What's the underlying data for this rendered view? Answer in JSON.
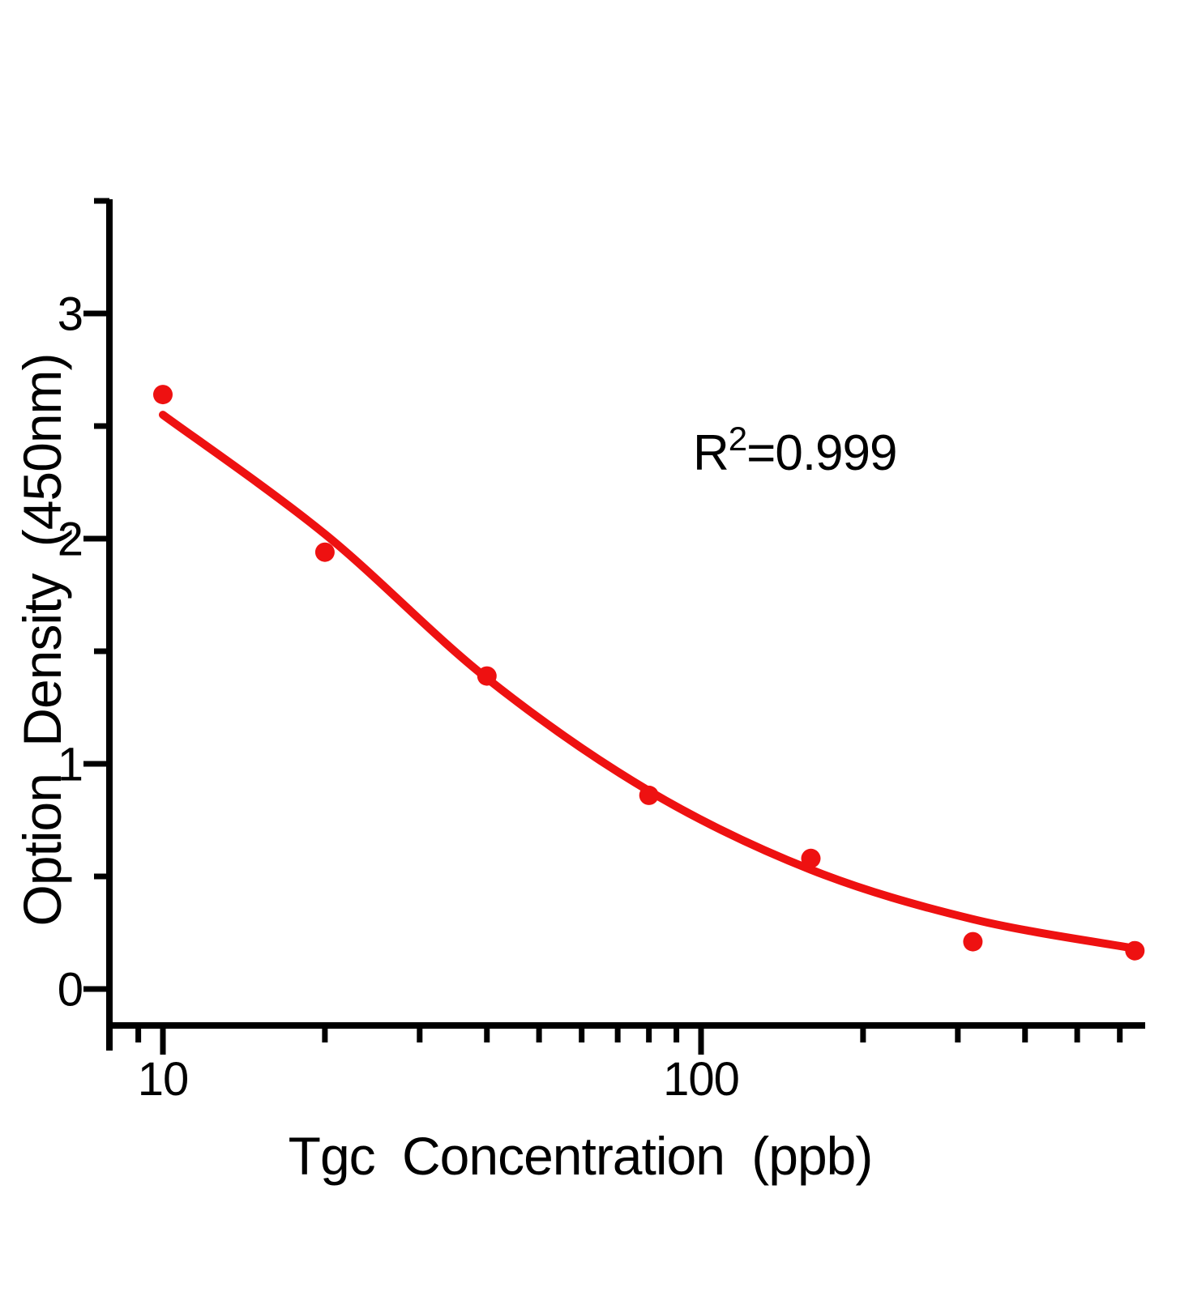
{
  "figure": {
    "background": "#FFFFFF",
    "accent_red": "#EE1111",
    "axis_color": "#000000"
  },
  "chart_data": {
    "type": "scatter",
    "title": "",
    "xlabel": "Tgc Concentration (ppb)",
    "ylabel": "Option Density (450nm)",
    "x_scale": "log10",
    "xlim": [
      8,
      670
    ],
    "ylim": [
      -0.16,
      3.5
    ],
    "x_major_ticks": [
      10,
      100
    ],
    "x_minor_ticks": [
      9,
      20,
      30,
      40,
      50,
      60,
      70,
      80,
      90,
      200,
      300,
      400,
      500,
      600
    ],
    "y_major_ticks": [
      0,
      1,
      2,
      3
    ],
    "y_minor_ticks": [
      0.5,
      1.5,
      2.5,
      3.5
    ],
    "grid": false,
    "legend": "none",
    "series": [
      {
        "name": "standard-points",
        "type": "scatter",
        "marker": "circle",
        "color": "#EE1111",
        "x": [
          10,
          20,
          40,
          80,
          160,
          320,
          640
        ],
        "y": [
          2.64,
          1.94,
          1.39,
          0.86,
          0.58,
          0.21,
          0.17
        ]
      },
      {
        "name": "4pl-fit-curve",
        "type": "line",
        "color": "#EE1111",
        "x": [
          10,
          20,
          40,
          80,
          160,
          320,
          640
        ],
        "y": [
          2.55,
          2.02,
          1.38,
          0.88,
          0.53,
          0.31,
          0.18
        ]
      }
    ],
    "annotation": {
      "r_base": "R",
      "r_sup": "2",
      "r_rest": "=0.999"
    }
  }
}
